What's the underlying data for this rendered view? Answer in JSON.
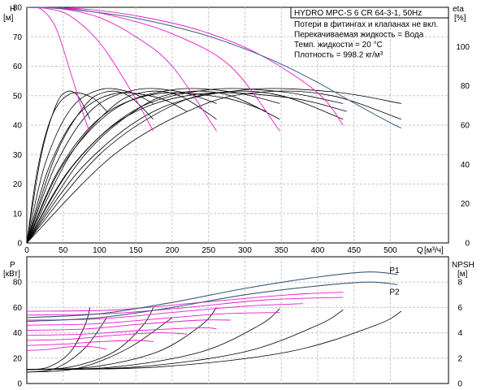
{
  "colors": {
    "system_curve": "#3a5a78",
    "head_envelope": "#4a6d8c",
    "speed_curves": "#e81cc8",
    "efficiency": "#000000",
    "npsh": "#000000",
    "grid": "#c8c8c8"
  },
  "chart_data": [
    {
      "type": "line",
      "panel": "head",
      "title": "HYDRO MPC-S 6 CR 64-3-1, 50Hz",
      "notes": [
        "Потери в фитингах и клапанах не вкл.",
        "Перекачиваемая жидкость = Вода",
        "Темп. жидкости = 20 °C",
        "Плотность = 998.2 кг/м³"
      ],
      "ylabel": "H",
      "yunit": "[м]",
      "y2label": "eta",
      "y2unit": "[%]",
      "xlabel": "Q",
      "xunit": "[м³/ч]",
      "xlim": [
        0,
        580
      ],
      "ylim": [
        0,
        80
      ],
      "y2lim": [
        0,
        120
      ],
      "xticks": [
        0,
        50,
        100,
        150,
        200,
        250,
        300,
        350,
        400,
        450,
        500
      ],
      "yticks": [
        0,
        10,
        20,
        30,
        40,
        50,
        60,
        70,
        80
      ],
      "y2ticks": [
        0,
        20,
        40,
        60,
        80,
        100
      ],
      "grid": true,
      "head_envelope": {
        "x": [
          0,
          20,
          50,
          100,
          150,
          200,
          250,
          300,
          350,
          400,
          450,
          500,
          515
        ],
        "y": [
          80,
          80,
          79.5,
          78.2,
          76.3,
          73.6,
          70.2,
          65.9,
          60.7,
          54.5,
          47.5,
          40.8,
          39
        ]
      },
      "head_speed_curves": [
        {
          "x": [
            0,
            20,
            40,
            60,
            80,
            87
          ],
          "y": [
            80,
            79.3,
            73,
            58,
            42,
            38
          ]
        },
        {
          "x": [
            0,
            30,
            60,
            100,
            140,
            174
          ],
          "y": [
            80,
            79.5,
            77,
            68,
            53,
            38
          ]
        },
        {
          "x": [
            0,
            50,
            100,
            150,
            200,
            261
          ],
          "y": [
            80,
            79.4,
            76.5,
            70,
            60,
            38
          ]
        },
        {
          "x": [
            0,
            60,
            120,
            200,
            280,
            348
          ],
          "y": [
            80,
            79.5,
            77,
            71,
            60,
            38
          ]
        },
        {
          "x": [
            0,
            80,
            160,
            240,
            320,
            400,
            435
          ],
          "y": [
            80,
            79.4,
            76.7,
            72,
            64,
            51,
            40
          ]
        }
      ],
      "efficiency_curves": [
        {
          "x": [
            0,
            20,
            40,
            55,
            70,
            87
          ],
          "y": [
            0,
            45,
            70,
            77,
            75,
            63
          ]
        },
        {
          "x": [
            0,
            40,
            80,
            110,
            140,
            174
          ],
          "y": [
            0,
            45,
            70,
            77,
            75,
            63
          ]
        },
        {
          "x": [
            0,
            60,
            120,
            165,
            210,
            261
          ],
          "y": [
            0,
            45,
            70,
            77,
            75,
            63
          ]
        },
        {
          "x": [
            0,
            80,
            160,
            220,
            280,
            348
          ],
          "y": [
            0,
            45,
            70,
            77,
            75,
            63
          ]
        },
        {
          "x": [
            0,
            100,
            200,
            275,
            350,
            435
          ],
          "y": [
            0,
            45,
            70,
            77,
            75,
            63
          ]
        },
        {
          "x": [
            0,
            120,
            240,
            330,
            420,
            515
          ],
          "y": [
            0,
            45,
            70,
            77,
            75,
            63
          ]
        },
        {
          "x": [
            0,
            25,
            60,
            100,
            140,
            174
          ],
          "y": [
            0,
            40,
            68,
            78,
            77,
            71
          ]
        },
        {
          "x": [
            0,
            40,
            90,
            150,
            210,
            261
          ],
          "y": [
            0,
            40,
            68,
            78,
            77,
            71
          ]
        },
        {
          "x": [
            0,
            50,
            120,
            200,
            280,
            348
          ],
          "y": [
            0,
            40,
            68,
            78,
            77,
            71
          ]
        },
        {
          "x": [
            0,
            65,
            150,
            250,
            350,
            435
          ],
          "y": [
            0,
            40,
            68,
            78,
            77,
            71
          ]
        },
        {
          "x": [
            0,
            80,
            180,
            300,
            420,
            515
          ],
          "y": [
            0,
            40,
            68,
            78,
            77,
            71
          ]
        },
        {
          "x": [
            0,
            15,
            35,
            60,
            90,
            110
          ],
          "y": [
            0,
            38,
            65,
            76,
            74,
            67
          ]
        },
        {
          "x": [
            0,
            30,
            70,
            120,
            180,
            220
          ],
          "y": [
            0,
            38,
            65,
            76,
            74,
            67
          ]
        },
        {
          "x": [
            0,
            45,
            105,
            180,
            270,
            330
          ],
          "y": [
            0,
            38,
            65,
            76,
            74,
            67
          ]
        },
        {
          "x": [
            0,
            60,
            140,
            240,
            360,
            440
          ],
          "y": [
            0,
            38,
            65,
            76,
            74,
            67
          ]
        }
      ]
    },
    {
      "type": "line",
      "panel": "power",
      "ylabel": "P",
      "yunit": "[кВт]",
      "y2label": "NPSH",
      "y2unit": "[м]",
      "xlim": [
        0,
        580
      ],
      "ylim": [
        0,
        100
      ],
      "y2lim": [
        0,
        10
      ],
      "yticks": [
        0,
        20,
        40,
        60,
        80
      ],
      "y2ticks": [
        0,
        2,
        4,
        6,
        8
      ],
      "grid": true,
      "series": [
        {
          "name": "P1",
          "x": [
            0,
            100,
            200,
            300,
            400,
            470,
            510
          ],
          "y": [
            52,
            55,
            64,
            75,
            84,
            88,
            86
          ]
        },
        {
          "name": "P2",
          "x": [
            0,
            100,
            200,
            300,
            400,
            470,
            510
          ],
          "y": [
            49,
            52,
            60,
            70,
            77,
            80,
            78
          ]
        }
      ],
      "power_speed_curves": [
        {
          "x": [
            0,
            30,
            60,
            90,
            110
          ],
          "y": [
            26,
            27,
            29,
            29,
            27
          ]
        },
        {
          "x": [
            0,
            50,
            100,
            150,
            174
          ],
          "y": [
            30,
            31,
            33,
            34,
            33
          ]
        },
        {
          "x": [
            0,
            60,
            120,
            180,
            220
          ],
          "y": [
            34,
            35,
            38,
            40,
            39
          ]
        },
        {
          "x": [
            0,
            80,
            160,
            240,
            261
          ],
          "y": [
            38,
            39,
            42,
            44,
            43
          ]
        },
        {
          "x": [
            0,
            80,
            160,
            240,
            280
          ],
          "y": [
            42,
            43,
            47,
            50,
            50
          ]
        },
        {
          "x": [
            0,
            90,
            180,
            270,
            348
          ],
          "y": [
            46,
            47,
            51,
            55,
            56
          ]
        },
        {
          "x": [
            0,
            100,
            200,
            300,
            380
          ],
          "y": [
            50,
            51,
            56,
            61,
            63
          ]
        },
        {
          "x": [
            0,
            110,
            220,
            330,
            435
          ],
          "y": [
            54,
            55,
            60,
            66,
            68
          ]
        },
        {
          "x": [
            0,
            120,
            240,
            360,
            435
          ],
          "y": [
            57,
            58,
            64,
            70,
            72
          ]
        }
      ],
      "npsh_curves": [
        {
          "x": [
            0,
            30,
            60,
            80,
            87
          ],
          "y": [
            1.1,
            1.3,
            2.5,
            4.6,
            6.0
          ]
        },
        {
          "x": [
            0,
            60,
            120,
            160,
            174
          ],
          "y": [
            1.1,
            1.3,
            2.5,
            4.6,
            6.0
          ]
        },
        {
          "x": [
            0,
            90,
            180,
            240,
            261
          ],
          "y": [
            1.1,
            1.3,
            2.5,
            4.6,
            6.0
          ]
        },
        {
          "x": [
            0,
            120,
            240,
            320,
            348
          ],
          "y": [
            1.1,
            1.3,
            2.5,
            4.6,
            5.9
          ]
        },
        {
          "x": [
            0,
            150,
            300,
            400,
            435
          ],
          "y": [
            1.1,
            1.3,
            2.5,
            4.6,
            5.8
          ]
        },
        {
          "x": [
            0,
            180,
            360,
            480,
            515
          ],
          "y": [
            1.1,
            1.3,
            2.5,
            4.6,
            5.7
          ]
        },
        {
          "x": [
            0,
            40,
            80,
            110
          ],
          "y": [
            0.9,
            1.2,
            2.8,
            5.2
          ]
        },
        {
          "x": [
            0,
            70,
            140,
            200
          ],
          "y": [
            0.9,
            1.2,
            2.8,
            5.2
          ]
        }
      ]
    }
  ]
}
